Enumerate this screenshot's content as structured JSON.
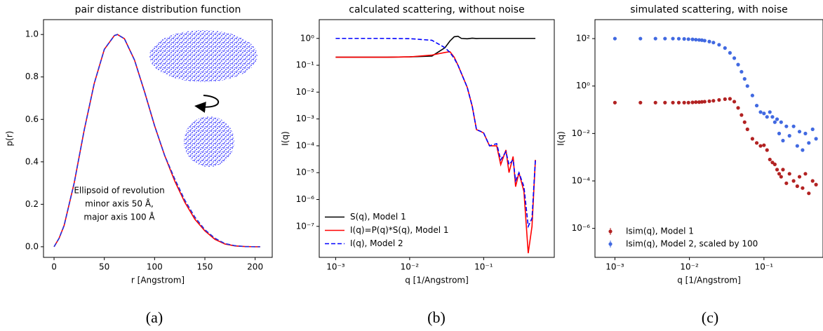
{
  "chart_data": [
    {
      "type": "line",
      "title": "pair distance distribution function",
      "caption": "(a)",
      "xlabel": "r [Angstrom]",
      "ylabel": "p(r)",
      "x": [
        0,
        5,
        10,
        20,
        30,
        40,
        50,
        60,
        63,
        70,
        80,
        90,
        100,
        110,
        120,
        130,
        140,
        150,
        160,
        170,
        180,
        190,
        200,
        205
      ],
      "series": [
        {
          "color": "#ff0000",
          "linestyle": "solid",
          "values": [
            0,
            0.04,
            0.1,
            0.3,
            0.55,
            0.77,
            0.93,
            0.995,
            1.0,
            0.98,
            0.88,
            0.73,
            0.57,
            0.43,
            0.31,
            0.21,
            0.13,
            0.075,
            0.035,
            0.013,
            0.004,
            0.001,
            0.0,
            0.0
          ]
        },
        {
          "color": "#2030e0",
          "linestyle": "dashed",
          "values": [
            0,
            0.04,
            0.1,
            0.3,
            0.55,
            0.77,
            0.93,
            0.995,
            1.0,
            0.98,
            0.88,
            0.73,
            0.57,
            0.43,
            0.32,
            0.22,
            0.14,
            0.08,
            0.04,
            0.015,
            0.005,
            0.001,
            0.0,
            0.0
          ]
        }
      ],
      "xlim": [
        -10.5,
        217
      ],
      "ylim": [
        -0.05,
        1.07
      ],
      "xticks": [
        0,
        50,
        100,
        150,
        200
      ],
      "yticks": [
        {
          "value": 0,
          "label": "0.0"
        },
        {
          "value": 0.2,
          "label": "0.2"
        },
        {
          "value": 0.4,
          "label": "0.4"
        },
        {
          "value": 0.6,
          "label": "0.6"
        },
        {
          "value": 0.8,
          "label": "0.8"
        },
        {
          "value": 1.0,
          "label": "1.0"
        }
      ],
      "annotation": [
        "Ellipsoid of revolution",
        "minor axis 50 Å,",
        "major axis 100 Å"
      ]
    },
    {
      "type": "line",
      "title": "calculated scattering, without noise",
      "caption": "(b)",
      "xlabel": "q [1/Angstrom]",
      "ylabel": "I(q)",
      "xscale": "log",
      "yscale": "log",
      "legend": "lower left",
      "x": [
        0.001,
        0.002,
        0.005,
        0.01,
        0.02,
        0.03,
        0.035,
        0.04,
        0.045,
        0.05,
        0.06,
        0.07,
        0.08,
        0.09,
        0.1,
        0.12,
        0.15,
        0.17,
        0.2,
        0.22,
        0.25,
        0.27,
        0.3,
        0.35,
        0.4,
        0.45,
        0.5
      ],
      "series": [
        {
          "name": "S(q), Model 1",
          "color": "#000000",
          "linestyle": "solid",
          "values": [
            0.2,
            0.2,
            0.2,
            0.205,
            0.22,
            0.45,
            0.8,
            1.15,
            1.2,
            1.0,
            0.97,
            1.02,
            0.99,
            1.0,
            1.0,
            1.0,
            1.0,
            1.0,
            1.0,
            1.0,
            1.0,
            1.0,
            1.0,
            1.0,
            1.0,
            1.0,
            1.0
          ]
        },
        {
          "name": "I(q)=P(q)*S(q), Model 1",
          "color": "#ff0000",
          "linestyle": "solid",
          "values": [
            0.2,
            0.2,
            0.2,
            0.205,
            0.24,
            0.3,
            0.32,
            0.2,
            0.1,
            0.05,
            0.015,
            0.003,
            0.0004,
            0.00035,
            0.0003,
            0.0001,
            0.0001,
            2e-05,
            7e-05,
            1e-05,
            4e-05,
            3e-06,
            1e-05,
            2e-06,
            1e-08,
            1e-07,
            3e-05
          ]
        },
        {
          "name": "I(q), Model 2",
          "color": "#0000ff",
          "linestyle": "dashed",
          "values": [
            1.0,
            1.0,
            1.0,
            0.98,
            0.85,
            0.45,
            0.3,
            0.18,
            0.1,
            0.05,
            0.015,
            0.003,
            0.0004,
            0.00035,
            0.0003,
            0.0001,
            0.00012,
            3e-05,
            6e-05,
            2e-05,
            3e-05,
            5e-06,
            1e-05,
            3e-06,
            1e-07,
            2e-07,
            3e-05
          ]
        }
      ],
      "xlim": [
        0.0006,
        0.9
      ],
      "ylim": [
        7e-09,
        5
      ],
      "xticks": [
        {
          "value": 0.001,
          "label": "10⁻³"
        },
        {
          "value": 0.01,
          "label": "10⁻²"
        },
        {
          "value": 0.1,
          "label": "10⁻¹"
        }
      ],
      "yticks": [
        {
          "value": 1,
          "label": "10⁰"
        },
        {
          "value": 0.1,
          "label": "10⁻¹"
        },
        {
          "value": 0.01,
          "label": "10⁻²"
        },
        {
          "value": 0.001,
          "label": "10⁻³"
        },
        {
          "value": 0.0001,
          "label": "10⁻⁴"
        },
        {
          "value": 1e-05,
          "label": "10⁻⁵"
        },
        {
          "value": 1e-06,
          "label": "10⁻⁶"
        },
        {
          "value": 1e-07,
          "label": "10⁻⁷"
        }
      ]
    },
    {
      "type": "scatter",
      "title": "simulated scattering, with noise",
      "caption": "(c)",
      "xlabel": "q [1/Angstrom]",
      "ylabel": "I(q)",
      "xscale": "log",
      "yscale": "log",
      "legend": "lower left",
      "x": [
        0.001,
        0.0022,
        0.0035,
        0.0047,
        0.006,
        0.0072,
        0.0085,
        0.0097,
        0.011,
        0.0122,
        0.0135,
        0.0147,
        0.016,
        0.0185,
        0.021,
        0.025,
        0.03,
        0.035,
        0.04,
        0.045,
        0.05,
        0.055,
        0.06,
        0.07,
        0.08,
        0.09,
        0.1,
        0.11,
        0.12,
        0.13,
        0.14,
        0.15,
        0.16,
        0.17,
        0.18,
        0.2,
        0.22,
        0.25,
        0.28,
        0.3,
        0.33,
        0.36,
        0.4,
        0.45,
        0.5
      ],
      "series": [
        {
          "name": "Isim(q), Model 1",
          "color": "#b22222",
          "values": [
            0.2,
            0.2,
            0.2,
            0.2,
            0.2,
            0.2,
            0.2,
            0.2,
            0.205,
            0.21,
            0.21,
            0.215,
            0.22,
            0.23,
            0.24,
            0.26,
            0.28,
            0.29,
            0.22,
            0.12,
            0.06,
            0.03,
            0.015,
            0.006,
            0.004,
            0.003,
            0.0032,
            0.002,
            0.0008,
            0.0006,
            0.0005,
            0.0003,
            0.0002,
            0.00015,
            0.0003,
            8e-05,
            0.0002,
            0.0001,
            6e-05,
            0.00015,
            5e-05,
            0.0002,
            3e-05,
            0.0001,
            7e-05
          ]
        },
        {
          "name": "Isim(q), Model 2, scaled by 100",
          "color": "#4169e1",
          "values": [
            100,
            100,
            100,
            100,
            100,
            99,
            97,
            95,
            93,
            90,
            88,
            86,
            82,
            75,
            68,
            55,
            40,
            25,
            15,
            8,
            4,
            2,
            1,
            0.4,
            0.15,
            0.08,
            0.07,
            0.05,
            0.08,
            0.05,
            0.03,
            0.04,
            0.01,
            0.03,
            0.005,
            0.02,
            0.008,
            0.02,
            0.003,
            0.012,
            0.002,
            0.01,
            0.004,
            0.015,
            0.006
          ]
        }
      ],
      "xlim": [
        0.00054,
        0.62
      ],
      "ylim": [
        6e-08,
        630
      ],
      "xticks": [
        {
          "value": 0.001,
          "label": "10⁻³"
        },
        {
          "value": 0.01,
          "label": "10⁻²"
        },
        {
          "value": 0.1,
          "label": "10⁻¹"
        }
      ],
      "yticks": [
        {
          "value": 100,
          "label": "10²"
        },
        {
          "value": 1,
          "label": "10⁰"
        },
        {
          "value": 0.01,
          "label": "10⁻²"
        },
        {
          "value": 0.0001,
          "label": "10⁻⁴"
        },
        {
          "value": 1e-06,
          "label": "10⁻⁶"
        }
      ]
    }
  ]
}
